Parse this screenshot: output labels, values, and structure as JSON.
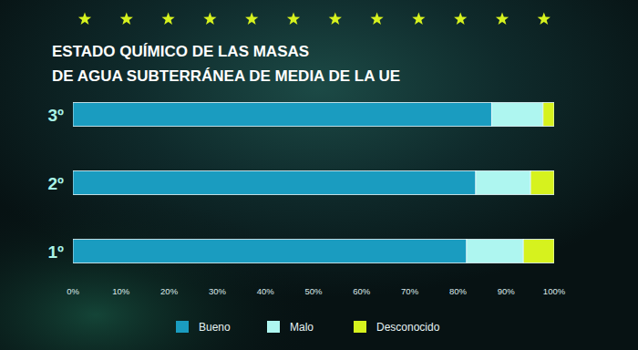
{
  "chart_data": {
    "type": "bar",
    "orientation": "horizontal",
    "stacked": true,
    "title": "ESTADO QUÍMICO DE LAS MASAS\nDE AGUA SUBTERRÁNEA DE MEDIA DE LA UE",
    "categories": [
      "1º",
      "2º",
      "3º"
    ],
    "series": [
      {
        "name": "Bueno",
        "color": "#1a9cc0",
        "values": [
          81.8,
          83.7,
          87
        ]
      },
      {
        "name": "Malo",
        "color": "#aef6f0",
        "values": [
          11.8,
          11.4,
          10.7
        ]
      },
      {
        "name": "Desconocido",
        "color": "#d6f21e",
        "values": [
          6.4,
          4.9,
          2.3
        ]
      }
    ],
    "xlim": [
      0,
      100
    ],
    "xticks": [
      {
        "value": 0,
        "label": "0%"
      },
      {
        "value": 10,
        "label": "10%"
      },
      {
        "value": 20,
        "label": "20%"
      },
      {
        "value": 30,
        "label": "30%"
      },
      {
        "value": 40,
        "label": "40%"
      },
      {
        "value": 50,
        "label": "50%"
      },
      {
        "value": 60,
        "label": "60%"
      },
      {
        "value": 70,
        "label": "70%"
      },
      {
        "value": 80,
        "label": "80%"
      },
      {
        "value": 90,
        "label": "90%"
      },
      {
        "value": 100,
        "label": "100%"
      }
    ],
    "grid": false,
    "legend": "bottom",
    "data_labels": false
  }
}
